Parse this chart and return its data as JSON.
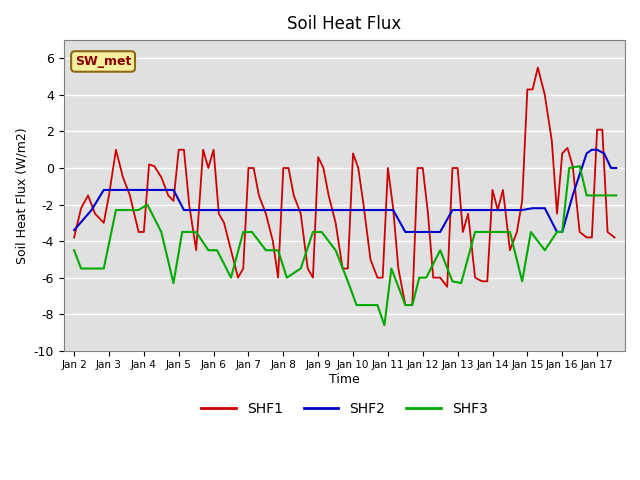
{
  "title": "Soil Heat Flux",
  "ylabel": "Soil Heat Flux (W/m2)",
  "xlabel": "Time",
  "ylim": [
    -10,
    7
  ],
  "xtick_labels": [
    "Jan 2",
    "Jan 3",
    "Jan 4",
    "Jan 5",
    "Jan 6",
    "Jan 7",
    "Jan 8",
    "Jan 9",
    "Jan 10",
    "Jan 11",
    "Jan 12",
    "Jan 13",
    "Jan 14",
    "Jan 15",
    "Jan 16",
    "Jan 17"
  ],
  "xtick_positions": [
    0,
    1,
    2,
    3,
    4,
    5,
    6,
    7,
    8,
    9,
    10,
    11,
    12,
    13,
    14,
    15
  ],
  "ytick_positions": [
    -10,
    -8,
    -6,
    -4,
    -2,
    0,
    2,
    4,
    6
  ],
  "annotation_text": "SW_met",
  "bg_color": "#e0e0e0",
  "legend_entries": [
    "SHF1",
    "SHF2",
    "SHF3"
  ],
  "line_colors": [
    "#cc0000",
    "#0000cc",
    "#00aa00"
  ],
  "shf1_x": [
    0.0,
    0.2,
    0.4,
    0.6,
    0.85,
    1.0,
    1.2,
    1.4,
    1.6,
    1.85,
    2.0,
    2.15,
    2.3,
    2.5,
    2.7,
    2.85,
    3.0,
    3.15,
    3.3,
    3.5,
    3.7,
    3.85,
    4.0,
    4.15,
    4.3,
    4.5,
    4.7,
    4.85,
    5.0,
    5.15,
    5.3,
    5.5,
    5.7,
    5.85,
    6.0,
    6.15,
    6.3,
    6.5,
    6.7,
    6.85,
    7.0,
    7.15,
    7.3,
    7.5,
    7.7,
    7.85,
    8.0,
    8.15,
    8.3,
    8.5,
    8.7,
    8.85,
    9.0,
    9.15,
    9.3,
    9.5,
    9.7,
    9.85,
    10.0,
    10.15,
    10.3,
    10.5,
    10.7,
    10.85,
    11.0,
    11.15,
    11.3,
    11.5,
    11.7,
    11.85,
    12.0,
    12.15,
    12.3,
    12.5,
    12.7,
    12.85,
    13.0,
    13.15,
    13.3,
    13.5,
    13.7,
    13.85,
    14.0,
    14.15,
    14.3,
    14.5,
    14.7,
    14.85,
    15.0,
    15.15,
    15.3,
    15.5
  ],
  "shf1_y": [
    -3.8,
    -2.2,
    -1.5,
    -2.5,
    -3.0,
    -1.5,
    1.0,
    -0.5,
    -1.5,
    -3.5,
    -3.5,
    0.2,
    0.1,
    -0.5,
    -1.5,
    -1.8,
    1.0,
    1.0,
    -2.0,
    -4.5,
    1.0,
    0.0,
    1.0,
    -2.5,
    -3.0,
    -4.5,
    -6.0,
    -5.5,
    0.0,
    0.0,
    -1.5,
    -2.5,
    -4.0,
    -6.0,
    0.0,
    0.0,
    -1.5,
    -2.5,
    -5.5,
    -6.0,
    0.6,
    0.0,
    -1.5,
    -3.0,
    -5.5,
    -5.5,
    0.8,
    0.0,
    -2.0,
    -5.0,
    -6.0,
    -6.0,
    0.0,
    -2.2,
    -5.5,
    -7.5,
    -7.5,
    0.0,
    0.0,
    -2.5,
    -6.0,
    -6.0,
    -6.5,
    0.0,
    0.0,
    -3.5,
    -2.5,
    -6.0,
    -6.2,
    -6.2,
    -1.2,
    -2.3,
    -1.2,
    -4.5,
    -3.5,
    -1.8,
    4.3,
    4.3,
    5.5,
    4.0,
    1.5,
    -2.5,
    0.8,
    1.1,
    0.1,
    -3.5,
    -3.8,
    -3.8,
    2.1,
    2.1,
    -3.5,
    -3.8
  ],
  "shf2_x": [
    0.0,
    0.5,
    0.85,
    1.4,
    1.85,
    2.3,
    2.85,
    3.15,
    3.5,
    3.9,
    4.2,
    4.5,
    4.85,
    5.2,
    5.5,
    5.85,
    6.2,
    6.5,
    6.85,
    7.15,
    7.5,
    7.85,
    8.15,
    8.5,
    8.85,
    9.15,
    9.5,
    9.85,
    10.15,
    10.5,
    10.85,
    11.15,
    11.5,
    11.85,
    12.15,
    12.5,
    12.85,
    13.15,
    13.5,
    13.85,
    14.0,
    14.3,
    14.7,
    14.85,
    15.0,
    15.2,
    15.4,
    15.55
  ],
  "shf2_y": [
    -3.4,
    -2.3,
    -1.2,
    -1.2,
    -1.2,
    -1.2,
    -1.2,
    -2.3,
    -2.3,
    -2.3,
    -2.3,
    -2.3,
    -2.3,
    -2.3,
    -2.3,
    -2.3,
    -2.3,
    -2.3,
    -2.3,
    -2.3,
    -2.3,
    -2.3,
    -2.3,
    -2.3,
    -2.3,
    -2.3,
    -3.5,
    -3.5,
    -3.5,
    -3.5,
    -2.3,
    -2.3,
    -2.3,
    -2.3,
    -2.3,
    -2.3,
    -2.3,
    -2.2,
    -2.2,
    -3.5,
    -3.5,
    -1.5,
    0.8,
    1.0,
    1.0,
    0.8,
    0.0,
    0.0
  ],
  "shf3_x": [
    0.0,
    0.2,
    0.5,
    0.85,
    1.2,
    1.6,
    1.85,
    2.1,
    2.5,
    2.85,
    3.1,
    3.5,
    3.85,
    4.1,
    4.5,
    4.85,
    5.1,
    5.5,
    5.85,
    6.1,
    6.5,
    6.85,
    7.1,
    7.5,
    7.85,
    8.1,
    8.5,
    8.7,
    8.9,
    9.1,
    9.5,
    9.7,
    9.9,
    10.1,
    10.5,
    10.85,
    11.1,
    11.5,
    11.85,
    12.1,
    12.5,
    12.85,
    13.1,
    13.5,
    13.85,
    14.0,
    14.2,
    14.5,
    14.7,
    14.85,
    15.1,
    15.4,
    15.55
  ],
  "shf3_y": [
    -4.5,
    -5.5,
    -5.5,
    -5.5,
    -2.3,
    -2.3,
    -2.3,
    -2.0,
    -3.5,
    -6.3,
    -3.5,
    -3.5,
    -4.5,
    -4.5,
    -6.0,
    -3.5,
    -3.5,
    -4.5,
    -4.5,
    -6.0,
    -5.5,
    -3.5,
    -3.5,
    -4.5,
    -6.2,
    -7.5,
    -7.5,
    -7.5,
    -8.6,
    -5.5,
    -7.5,
    -7.5,
    -6.0,
    -6.0,
    -4.5,
    -6.2,
    -6.3,
    -3.5,
    -3.5,
    -3.5,
    -3.5,
    -6.2,
    -3.5,
    -4.5,
    -3.5,
    -3.5,
    0.0,
    0.1,
    -1.5,
    -1.5,
    -1.5,
    -1.5,
    -1.5
  ]
}
